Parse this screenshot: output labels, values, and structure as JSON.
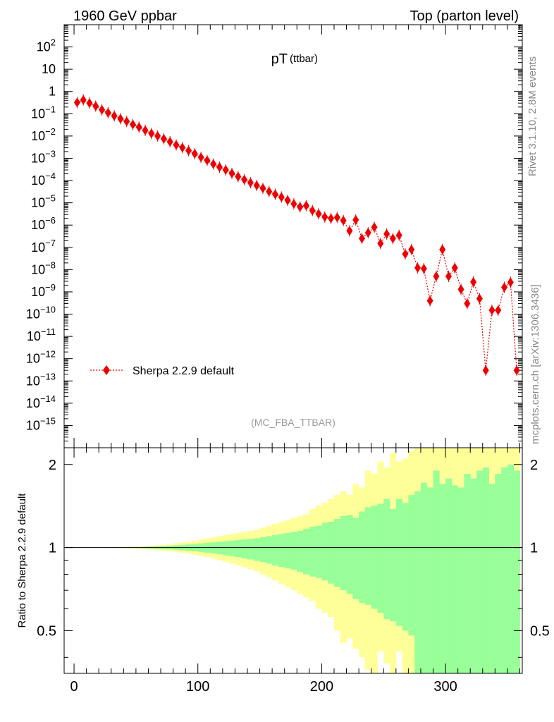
{
  "header": {
    "left": "1960 GeV ppbar",
    "right": "Top (parton level)"
  },
  "side_text": {
    "rivet": "Rivet 3.1.10,  2.8M events",
    "source": "mcplots.cern.ch [arXiv:1306.3436]"
  },
  "chart_data": [
    {
      "type": "scatter",
      "title": "pT",
      "title_suffix": "(ttbar)",
      "analysis_label": "(MC_FBA_TTBAR)",
      "xlim": [
        -8,
        362
      ],
      "ylim": [
        1e-16,
        1000
      ],
      "y_scale": "log",
      "y_tick_labels": [
        "10^2",
        "10",
        "1",
        "10^-1",
        "10^-2",
        "10^-3",
        "10^-4",
        "10^-5",
        "10^-6",
        "10^-7",
        "10^-8",
        "10^-9",
        "10^-10",
        "10^-11",
        "10^-12",
        "10^-13",
        "10^-14",
        "10^-15"
      ],
      "legend": {
        "placement": "bottom-left",
        "entries": [
          "Sherpa 2.2.9 default"
        ]
      },
      "colors": {
        "series": "#ee0000"
      },
      "series": [
        {
          "name": "Sherpa 2.2.9 default",
          "x": [
            2.5,
            7.5,
            12.5,
            17.5,
            22.5,
            27.5,
            32.5,
            37.5,
            42.5,
            47.5,
            52.5,
            57.5,
            62.5,
            67.5,
            72.5,
            77.5,
            82.5,
            87.5,
            92.5,
            97.5,
            102.5,
            107.5,
            112.5,
            117.5,
            122.5,
            127.5,
            132.5,
            137.5,
            142.5,
            147.5,
            152.5,
            157.5,
            162.5,
            167.5,
            172.5,
            177.5,
            182.5,
            187.5,
            192.5,
            197.5,
            202.5,
            207.5,
            212.5,
            217.5,
            222.5,
            227.5,
            232.5,
            237.5,
            242.5,
            247.5,
            252.5,
            257.5,
            262.5,
            267.5,
            272.5,
            277.5,
            282.5,
            287.5,
            292.5,
            297.5,
            302.5,
            307.5,
            312.5,
            317.5,
            322.5,
            327.5,
            332.5,
            337.5,
            342.5,
            347.5,
            352.5,
            357.5
          ],
          "y": [
            0.32,
            0.42,
            0.3,
            0.22,
            0.15,
            0.11,
            0.08,
            0.06,
            0.045,
            0.033,
            0.025,
            0.018,
            0.013,
            0.01,
            0.0075,
            0.0055,
            0.004,
            0.003,
            0.0022,
            0.0016,
            0.0011,
            0.0008,
            0.00055,
            0.0004,
            0.0003,
            0.00021,
            0.00015,
            0.00011,
            8e-05,
            6e-05,
            4.5e-05,
            3.2e-05,
            2.4e-05,
            1.8e-05,
            1.3e-05,
            9e-06,
            6.5e-06,
            7.5e-06,
            4.5e-06,
            3.2e-06,
            2.3e-06,
            2e-06,
            2.2e-06,
            1.6e-06,
            5.5e-07,
            1.7e-06,
            2.5e-07,
            4.5e-07,
            8e-07,
            1.5e-07,
            4e-07,
            2.5e-07,
            3.5e-07,
            5e-08,
            8e-08,
            1.2e-08,
            1.1e-08,
            4e-10,
            5e-09,
            8e-08,
            5e-09,
            1.2e-08,
            1.3e-09,
            3e-10,
            2.8e-09,
            5e-10,
            3e-13,
            1.5e-10,
            1.5e-10,
            1.6e-09,
            2.7e-09,
            3e-13
          ],
          "marker": "diamond",
          "line": "dotted"
        }
      ]
    },
    {
      "type": "bar",
      "title": "",
      "xlabel": "",
      "ylabel": "Ratio to Sherpa 2.2.9 default",
      "xlim": [
        -8,
        362
      ],
      "ylim": [
        0.35,
        2.3
      ],
      "y_scale": "log",
      "x_ticks": [
        0,
        100,
        200,
        300
      ],
      "y_ticks": [
        0.5,
        1,
        2
      ],
      "reference_line": 1,
      "colors": {
        "inner_band": "#99ff99",
        "outer_band": "#ffff99"
      },
      "bin_edges": [
        0,
        5,
        10,
        15,
        20,
        25,
        30,
        35,
        40,
        45,
        50,
        55,
        60,
        65,
        70,
        75,
        80,
        85,
        90,
        95,
        100,
        105,
        110,
        115,
        120,
        125,
        130,
        135,
        140,
        145,
        150,
        155,
        160,
        165,
        170,
        175,
        180,
        185,
        190,
        195,
        200,
        205,
        210,
        215,
        220,
        225,
        230,
        235,
        240,
        245,
        250,
        255,
        260,
        265,
        270,
        275,
        280,
        285,
        290,
        295,
        300,
        305,
        310,
        315,
        320,
        325,
        330,
        335,
        340,
        345,
        350,
        355,
        360
      ],
      "bands": [
        {
          "name": "inner",
          "upper": [
            1.0001,
            1.0002,
            1.0003,
            1.0005,
            1.0008,
            1.0012,
            1.0016,
            1.0022,
            1.003,
            1.004,
            1.005,
            1.006,
            1.008,
            1.01,
            1.012,
            1.015,
            1.018,
            1.022,
            1.026,
            1.03,
            1.035,
            1.04,
            1.045,
            1.05,
            1.055,
            1.06,
            1.065,
            1.07,
            1.075,
            1.08,
            1.09,
            1.1,
            1.11,
            1.12,
            1.13,
            1.14,
            1.15,
            1.17,
            1.19,
            1.2,
            1.23,
            1.24,
            1.27,
            1.3,
            1.31,
            1.28,
            1.35,
            1.4,
            1.42,
            1.44,
            1.5,
            1.38,
            1.5,
            1.45,
            1.55,
            1.6,
            1.72,
            1.65,
            1.9,
            1.7,
            1.78,
            1.68,
            1.65,
            1.85,
            1.78,
            1.9,
            1.95,
            1.7,
            1.85,
            1.95,
            2.0,
            1.9
          ],
          "lower": [
            0.9999,
            0.9998,
            0.9997,
            0.9995,
            0.9992,
            0.9988,
            0.9984,
            0.9978,
            0.997,
            0.996,
            0.995,
            0.993,
            0.991,
            0.989,
            0.987,
            0.984,
            0.981,
            0.977,
            0.973,
            0.969,
            0.964,
            0.958,
            0.952,
            0.945,
            0.938,
            0.93,
            0.922,
            0.913,
            0.905,
            0.895,
            0.885,
            0.874,
            0.86,
            0.85,
            0.84,
            0.83,
            0.815,
            0.8,
            0.785,
            0.775,
            0.76,
            0.74,
            0.72,
            0.7,
            0.68,
            0.65,
            0.63,
            0.62,
            0.6,
            0.58,
            0.55,
            0.54,
            0.52,
            0.5,
            0.48,
            0.35,
            0.35,
            0.35,
            0.35,
            0.35,
            0.35,
            0.35,
            0.35,
            0.35,
            0.35,
            0.35,
            0.35,
            0.35,
            0.35,
            0.35,
            0.35,
            0.35
          ]
        },
        {
          "name": "outer",
          "upper": [
            1.0002,
            1.0004,
            1.0006,
            1.001,
            1.0016,
            1.0024,
            1.0032,
            1.0044,
            1.006,
            1.008,
            1.01,
            1.012,
            1.016,
            1.02,
            1.024,
            1.03,
            1.036,
            1.044,
            1.052,
            1.06,
            1.07,
            1.08,
            1.09,
            1.1,
            1.11,
            1.12,
            1.13,
            1.14,
            1.15,
            1.16,
            1.18,
            1.2,
            1.22,
            1.24,
            1.26,
            1.28,
            1.3,
            1.32,
            1.38,
            1.42,
            1.45,
            1.5,
            1.55,
            1.6,
            1.55,
            1.7,
            1.65,
            1.9,
            1.85,
            2.05,
            1.95,
            2.2,
            2.05,
            2.1,
            2.25,
            2.3,
            2.3,
            2.3,
            2.3,
            2.3,
            2.3,
            2.3,
            2.3,
            2.3,
            2.3,
            2.3,
            2.3,
            2.3,
            2.3,
            2.3,
            2.3,
            2.3
          ],
          "lower": [
            0.9998,
            0.9996,
            0.9994,
            0.999,
            0.9984,
            0.9976,
            0.9968,
            0.9956,
            0.994,
            0.992,
            0.99,
            0.987,
            0.983,
            0.979,
            0.975,
            0.97,
            0.965,
            0.958,
            0.95,
            0.942,
            0.933,
            0.923,
            0.912,
            0.9,
            0.888,
            0.875,
            0.862,
            0.848,
            0.834,
            0.82,
            0.8,
            0.78,
            0.76,
            0.74,
            0.72,
            0.7,
            0.68,
            0.66,
            0.64,
            0.6,
            0.58,
            0.56,
            0.5,
            0.45,
            0.47,
            0.43,
            0.4,
            0.36,
            0.35,
            0.42,
            0.38,
            0.35,
            0.42,
            0.35,
            0.35,
            0.35,
            0.35,
            0.35,
            0.35,
            0.35,
            0.35,
            0.35,
            0.35,
            0.35,
            0.35,
            0.35,
            0.35,
            0.35,
            0.35,
            0.35,
            0.35,
            0.35
          ]
        }
      ]
    }
  ]
}
